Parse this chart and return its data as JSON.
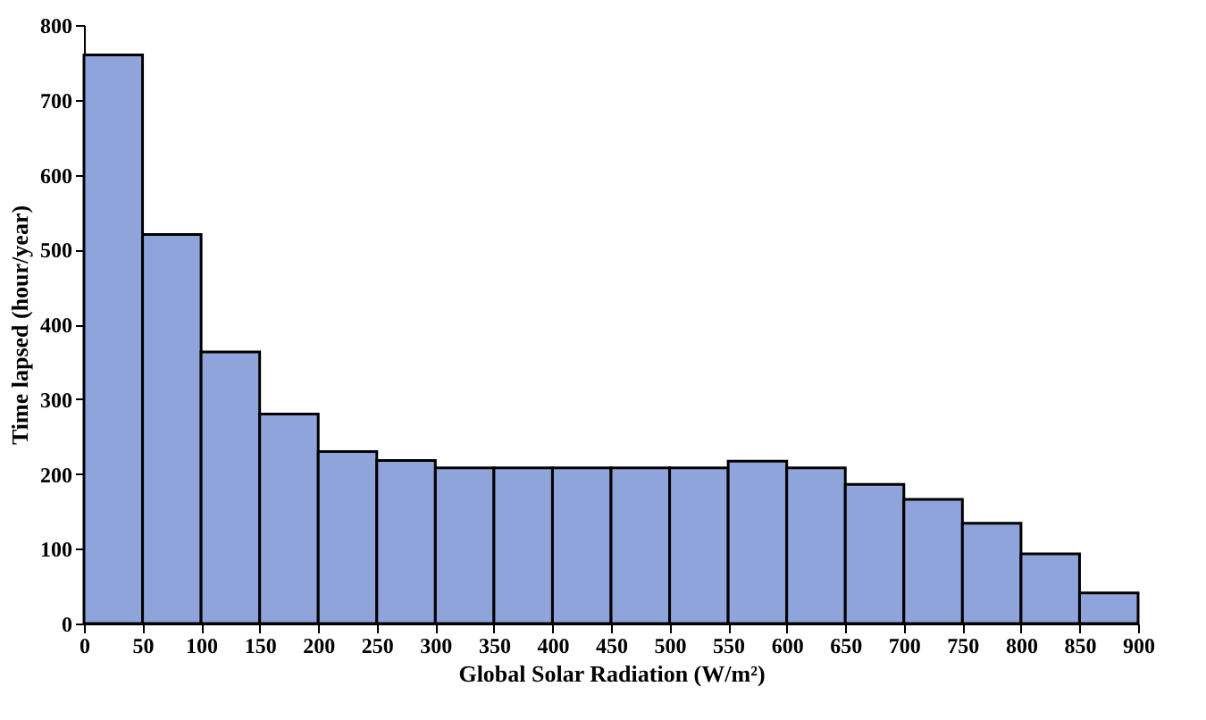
{
  "chart_data": {
    "type": "histogram",
    "xlabel": "Global Solar Radiation (W/m²)",
    "ylabel": "Time lapsed (hour/year)",
    "bins": [
      0,
      50,
      100,
      150,
      200,
      250,
      300,
      350,
      400,
      450,
      500,
      550,
      600,
      650,
      700,
      750,
      800,
      850,
      900
    ],
    "values": [
      760,
      520,
      363,
      280,
      230,
      218,
      208,
      208,
      208,
      208,
      208,
      217,
      208,
      186,
      166,
      134,
      93,
      41
    ],
    "color": "#8ea4db",
    "xlim": [
      0,
      900
    ],
    "xticks": [
      0,
      50,
      100,
      150,
      200,
      250,
      300,
      350,
      400,
      450,
      500,
      550,
      600,
      650,
      700,
      750,
      800,
      850,
      900
    ],
    "ylim": [
      0,
      800
    ],
    "yticks": [
      0,
      100,
      200,
      300,
      400,
      500,
      600,
      700,
      800
    ],
    "grid": false
  }
}
